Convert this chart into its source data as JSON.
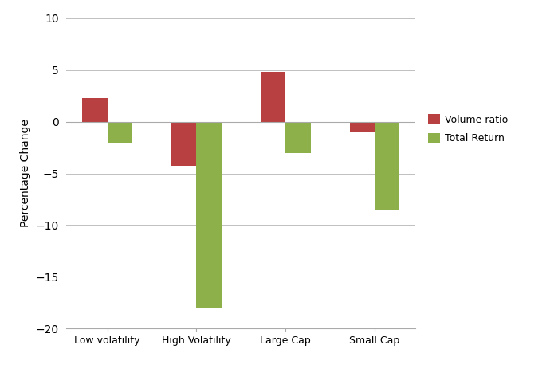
{
  "categories": [
    "Low volatility",
    "High Volatility",
    "Large Cap",
    "Small Cap"
  ],
  "volume_ratio": [
    2.3,
    -4.3,
    4.8,
    -1.0
  ],
  "total_return": [
    -2.0,
    -18.0,
    -3.0,
    -8.5
  ],
  "bar_colors": {
    "volume_ratio": "#b94040",
    "total_return": "#8db04a"
  },
  "ylabel": "Percentage Change",
  "ylim": [
    -20,
    10
  ],
  "yticks": [
    -20,
    -15,
    -10,
    -5,
    0,
    5,
    10
  ],
  "legend_labels": [
    "Volume ratio",
    "Total Return"
  ],
  "bar_width": 0.28,
  "background_color": "#ffffff",
  "grid_color": "#c0c0c0",
  "spine_color": "#aaaaaa"
}
